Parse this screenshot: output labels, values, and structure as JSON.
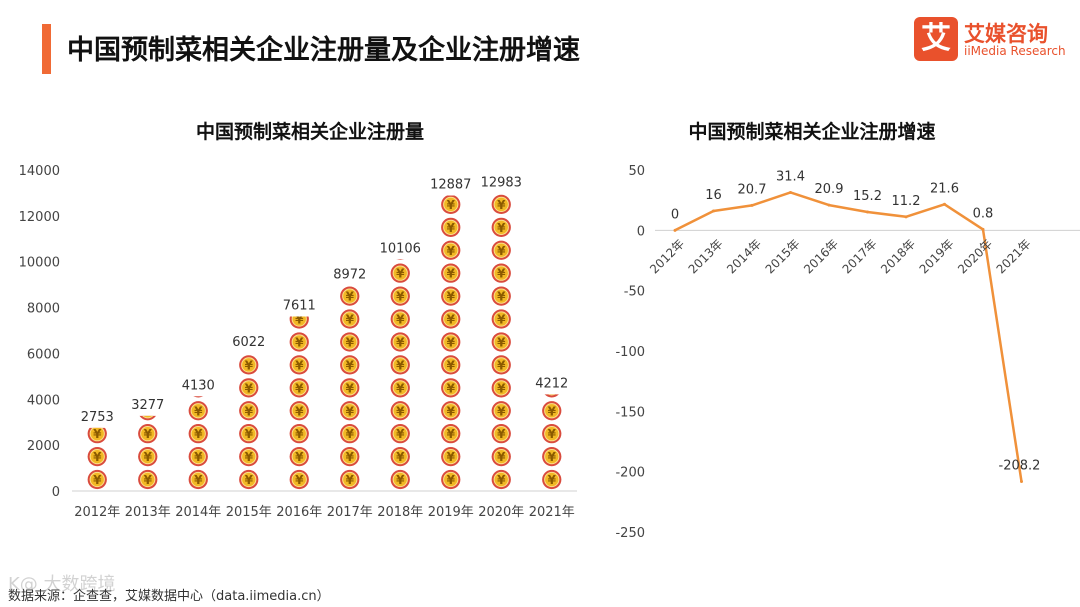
{
  "header": {
    "title": "中国预制菜相关企业注册量及企业注册增速",
    "accent_color": "#f06a35"
  },
  "logo": {
    "mark": "艾",
    "name_cn": "艾媒咨询",
    "name_en": "iiMedia Research",
    "color": "#e9512c"
  },
  "chart_data": [
    {
      "type": "bar",
      "title": "中国预制菜相关企业注册量",
      "categories": [
        "2012年",
        "2013年",
        "2014年",
        "2015年",
        "2016年",
        "2017年",
        "2018年",
        "2019年",
        "2020年",
        "2021年"
      ],
      "values": [
        2753,
        3277,
        4130,
        6022,
        7611,
        8972,
        10106,
        12887,
        12983,
        4212
      ],
      "ylim": [
        0,
        14000
      ],
      "yticks": [
        0,
        2000,
        4000,
        6000,
        8000,
        10000,
        12000,
        14000
      ],
      "xlabel": "",
      "ylabel": "",
      "grid": false,
      "mark_style": "stacked coin icons (¥), one coin per 1000",
      "colors": {
        "coin_outer": "#d94b3d",
        "coin_inner": "#f2b824",
        "coin_symbol": "#8a5a00"
      }
    },
    {
      "type": "line",
      "title": "中国预制菜相关企业注册增速",
      "categories": [
        "2012年",
        "2013年",
        "2014年",
        "2015年",
        "2016年",
        "2017年",
        "2018年",
        "2019年",
        "2020年",
        "2021年"
      ],
      "values": [
        0,
        16,
        20.7,
        31.4,
        20.9,
        15.2,
        11.2,
        21.6,
        0.8,
        -208.2
      ],
      "ylim": [
        -250,
        50
      ],
      "yticks": [
        50,
        0,
        -50,
        -100,
        -150,
        -200,
        -250
      ],
      "xlabel": "",
      "ylabel": "",
      "grid": false,
      "colors": {
        "line": "#f0913a"
      }
    }
  ],
  "footer": {
    "source": "数据来源：企查查，艾媒数据中心（data.iimedia.cn）",
    "watermark": "K@ 大数跨境"
  }
}
